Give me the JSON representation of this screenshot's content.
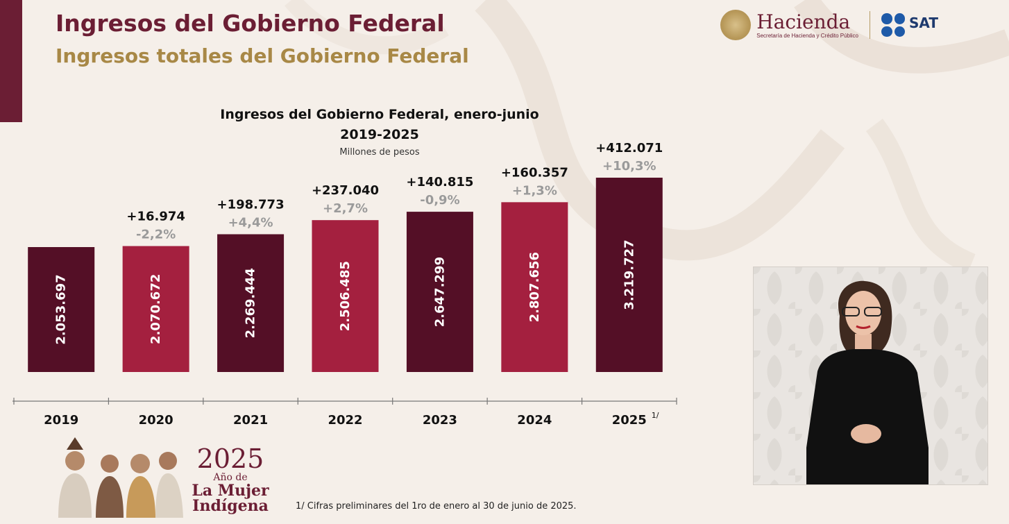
{
  "header": {
    "title": "Ingresos del Gobierno Federal",
    "subtitle": "Ingresos totales del Gobierno Federal"
  },
  "logos": {
    "hacienda_name": "Hacienda",
    "hacienda_sub": "Secretaría de Hacienda y Crédito Público",
    "sat_name": "SAT"
  },
  "chart_data": {
    "type": "bar",
    "title": "Ingresos del Gobierno Federal, enero-junio",
    "title_line2": "2019-2025",
    "ylabel": "Millones de pesos",
    "categories": [
      "2019",
      "2020",
      "2021",
      "2022",
      "2023",
      "2024",
      "2025"
    ],
    "category_note": [
      "",
      "",
      "",
      "",
      "",
      "",
      "1/"
    ],
    "values": [
      2053697,
      2070672,
      2269444,
      2506485,
      2647299,
      2807656,
      3219727
    ],
    "value_labels": [
      "2.053.697",
      "2.070.672",
      "2.269.444",
      "2.506.485",
      "2.647.299",
      "2.807.656",
      "3.219.727"
    ],
    "diff_labels": [
      "",
      "+16.974",
      "+198.773",
      "+237.040",
      "+140.815",
      "+160.357",
      "+412.071"
    ],
    "pct_labels": [
      "",
      "-2,2%",
      "+4,4%",
      "+2,7%",
      "-0,9%",
      "+1,3%",
      "+10,3%"
    ],
    "colors": [
      "#540f26",
      "#a4203f"
    ],
    "grid": false
  },
  "footer": {
    "logo_year": "2025",
    "logo_ano": "Año de",
    "logo_main_1": "La Mujer",
    "logo_main_2": "Indígena",
    "footnote": "1/ Cifras preliminares del 1ro de enero al 30 de junio de 2025."
  },
  "colors": {
    "brand": "#6b1e34",
    "gold": "#a88846",
    "bar_dark": "#540f26",
    "bar_red": "#a4203f"
  }
}
